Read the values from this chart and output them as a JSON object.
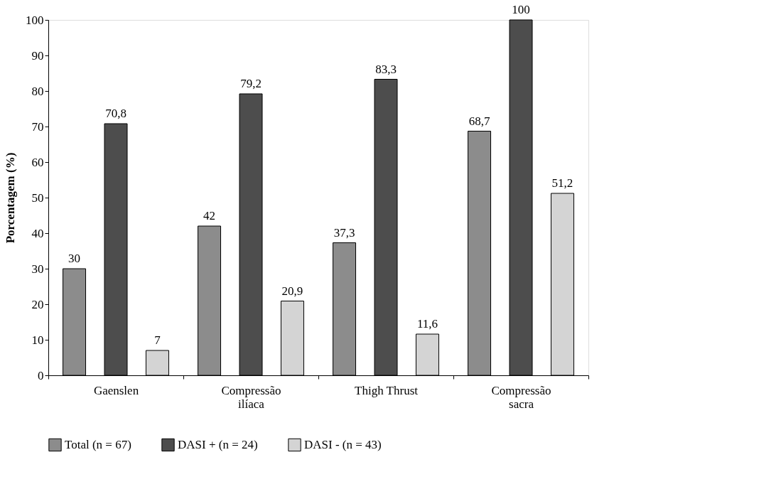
{
  "chart_data": {
    "type": "bar",
    "ylabel": "Porcentagem (%)",
    "categories": [
      "Gaenslen",
      "Compressão ilíaca",
      "Thigh Thrust",
      "Compressão sacra"
    ],
    "series": [
      {
        "name": "Total (n = 67)",
        "color": "#8c8c8c",
        "values": [
          30,
          42,
          37.3,
          68.7
        ],
        "value_labels": [
          "30",
          "42",
          "37,3",
          "68,7"
        ]
      },
      {
        "name": "DASI + (n = 24)",
        "color": "#4d4d4d",
        "values": [
          70.8,
          79.2,
          83.3,
          100
        ],
        "value_labels": [
          "70,8",
          "79,2",
          "83,3",
          "100"
        ]
      },
      {
        "name": "DASI - (n = 43)",
        "color": "#d4d4d4",
        "values": [
          7,
          20.9,
          11.6,
          51.2
        ],
        "value_labels": [
          "7",
          "20,9",
          "11,6",
          "51,2"
        ]
      }
    ],
    "ylim": [
      0,
      100
    ],
    "yticks": [
      0,
      10,
      20,
      30,
      40,
      50,
      60,
      70,
      80,
      90,
      100
    ],
    "grid": false,
    "legend": "bottom"
  }
}
